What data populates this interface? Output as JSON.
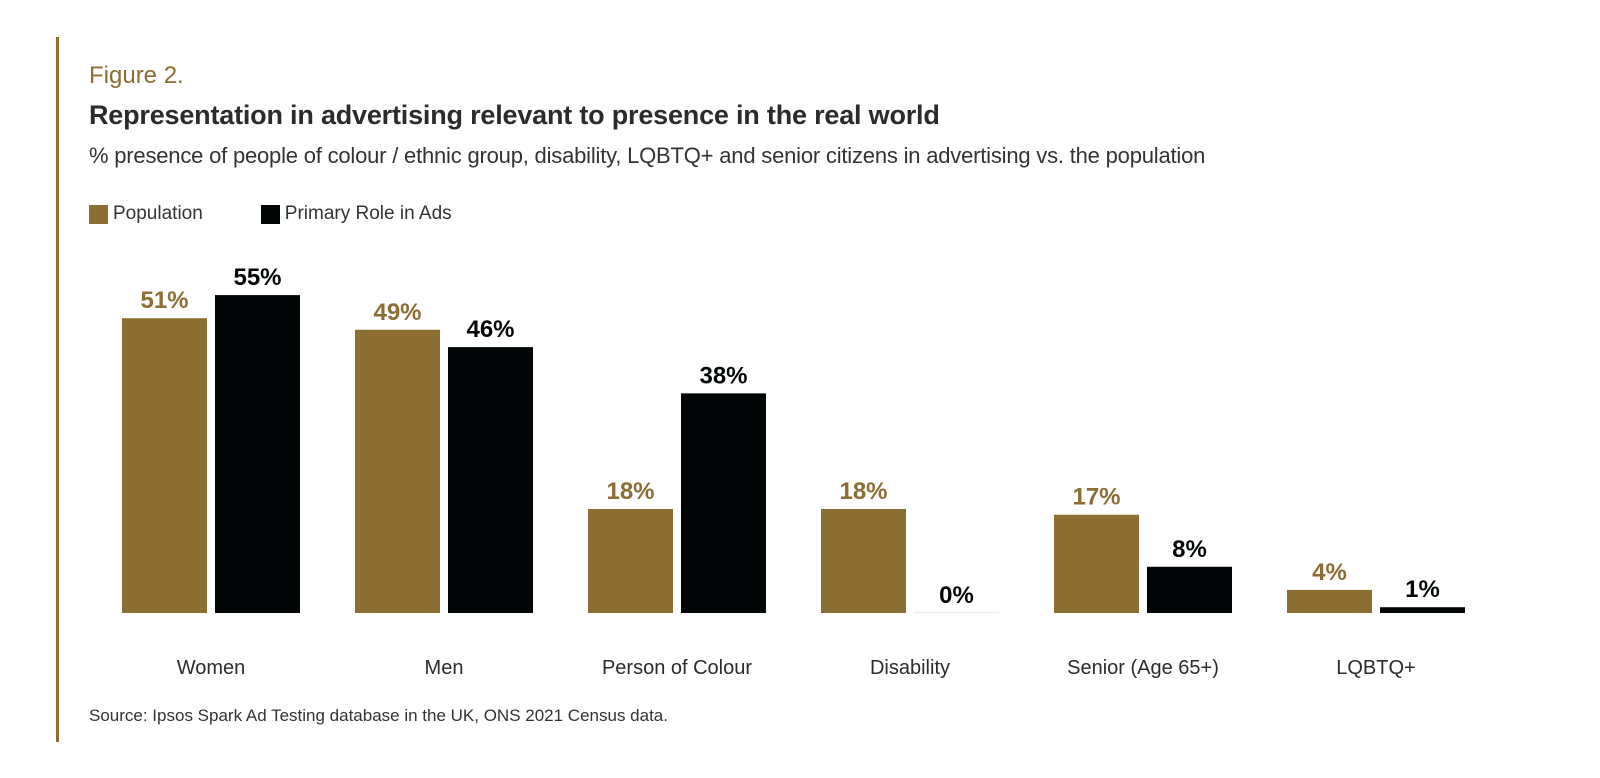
{
  "figure_label": "Figure 2.",
  "colors": {
    "accent": "#8c6d32",
    "population": "#8c6d32",
    "ads": "#030606",
    "text": "#2b2b2b"
  },
  "chart_data": {
    "type": "bar",
    "title": "Representation in advertising relevant to presence in the real world",
    "subtitle": "% presence of people of colour / ethnic group, disability, LQBTQ+ and senior citizens in advertising vs. the population",
    "xlabel": "",
    "ylabel": "",
    "ylim": [
      0,
      55
    ],
    "grid": false,
    "legend_position": "top-left",
    "categories": [
      "Women",
      "Men",
      "Person of Colour",
      "Disability",
      "Senior (Age 65+)",
      "LQBTQ+"
    ],
    "series": [
      {
        "name": "Population",
        "color": "#8c6d32",
        "values": [
          51,
          49,
          18,
          18,
          17,
          4
        ],
        "labels": [
          "51%",
          "49%",
          "18%",
          "18%",
          "17%",
          "4%"
        ]
      },
      {
        "name": "Primary Role in Ads",
        "color": "#030606",
        "values": [
          55,
          46,
          38,
          0,
          8,
          1
        ],
        "labels": [
          "55%",
          "46%",
          "38%",
          "0%",
          "8%",
          "1%"
        ]
      }
    ],
    "source": "Source: Ipsos Spark Ad Testing database in the UK, ONS 2021 Census data."
  }
}
